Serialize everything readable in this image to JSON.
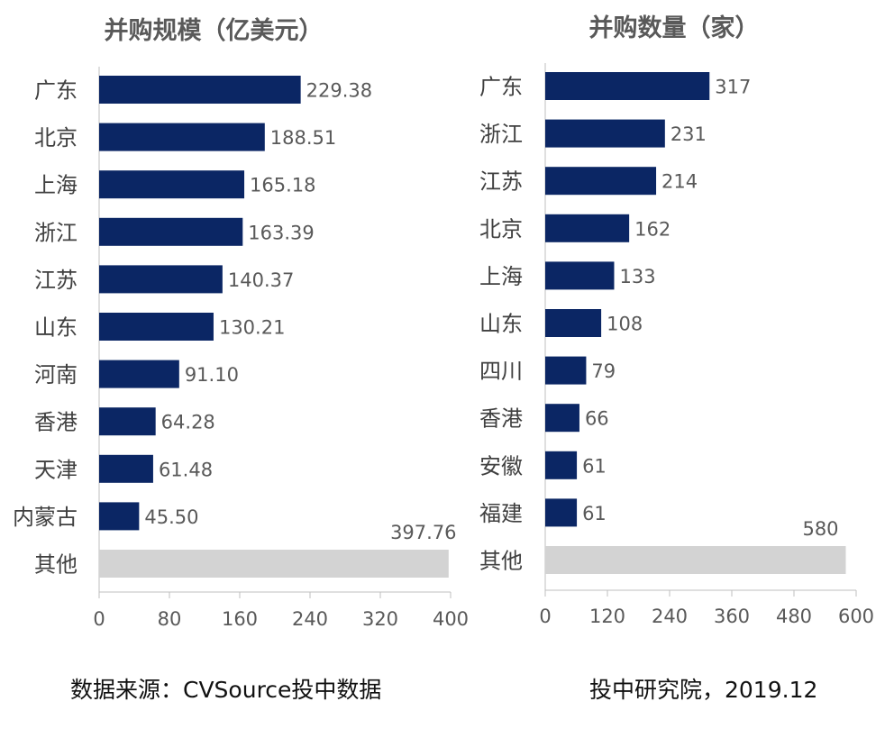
{
  "colors": {
    "bar": "#0b2664",
    "other_bar": "#d3d3d3",
    "axis": "#bfbfbf",
    "text": "#595959"
  },
  "chart_data": [
    {
      "type": "bar",
      "orientation": "horizontal",
      "title": "并购规模（亿美元）",
      "categories": [
        "广东",
        "北京",
        "上海",
        "浙江",
        "江苏",
        "山东",
        "河南",
        "香港",
        "天津",
        "内蒙古",
        "其他"
      ],
      "values": [
        229.38,
        188.51,
        165.18,
        163.39,
        140.37,
        130.21,
        91.1,
        64.28,
        61.48,
        45.5,
        397.76
      ],
      "value_labels": [
        "229.38",
        "188.51",
        "165.18",
        "163.39",
        "140.37",
        "130.21",
        "91.10",
        "64.28",
        "61.48",
        "45.50",
        "397.76"
      ],
      "xlim": [
        0,
        400
      ],
      "xticks": [
        0,
        80,
        160,
        240,
        320,
        400
      ],
      "grid": false,
      "highlight_last_gray": true
    },
    {
      "type": "bar",
      "orientation": "horizontal",
      "title": "并购数量（家）",
      "categories": [
        "广东",
        "浙江",
        "江苏",
        "北京",
        "上海",
        "山东",
        "四川",
        "香港",
        "安徽",
        "福建",
        "其他"
      ],
      "values": [
        317,
        231,
        214,
        162,
        133,
        108,
        79,
        66,
        61,
        61,
        580
      ],
      "value_labels": [
        "317",
        "231",
        "214",
        "162",
        "133",
        "108",
        "79",
        "66",
        "61",
        "61",
        "580"
      ],
      "xlim": [
        0,
        600
      ],
      "xticks": [
        0,
        120,
        240,
        360,
        480,
        600
      ],
      "grid": false,
      "highlight_last_gray": true
    }
  ],
  "footer": {
    "source": "数据来源：CVSource投中数据",
    "credit": "投中研究院，2019.12"
  }
}
